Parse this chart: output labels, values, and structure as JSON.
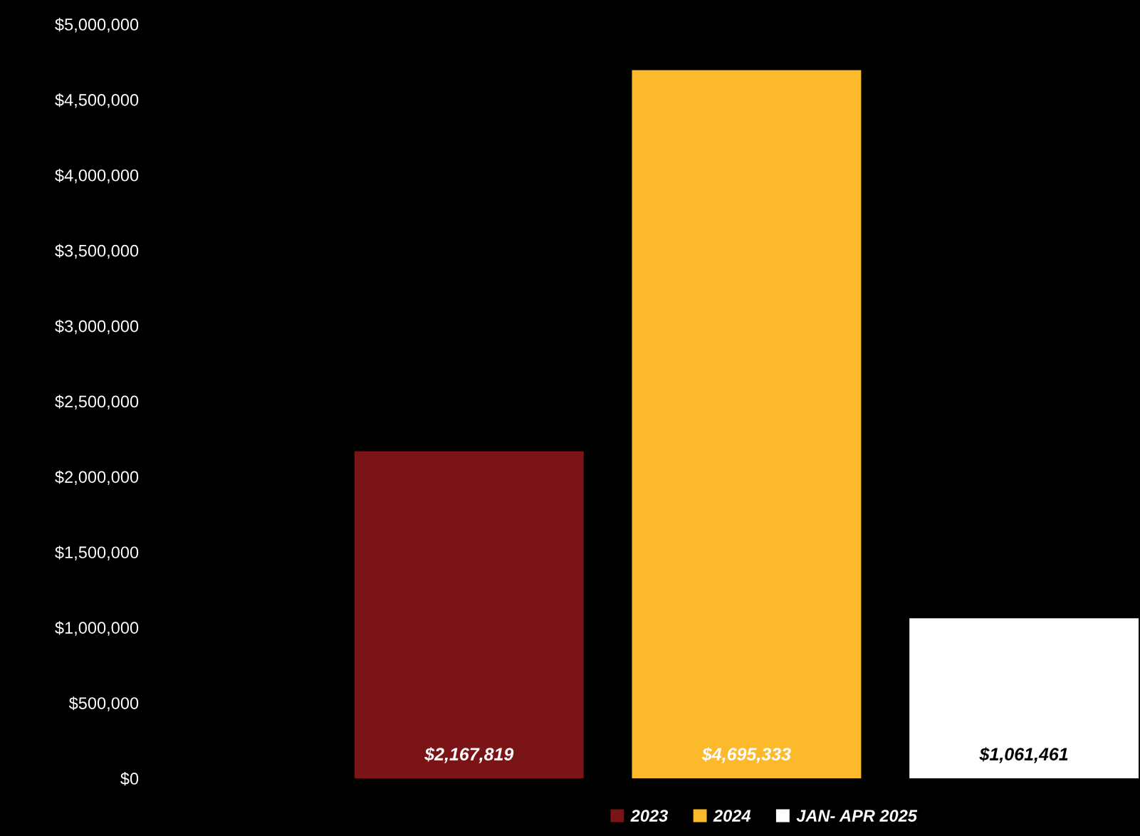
{
  "chart_data": {
    "type": "bar",
    "categories": [
      null
    ],
    "series": [
      {
        "name": "2023",
        "color": "#7b1416",
        "values": [
          2167819
        ]
      },
      {
        "name": "2024",
        "color": "#fdb92c",
        "values": [
          4695333
        ]
      },
      {
        "name": "JAN- APR 2025",
        "color": "#ffffff",
        "values": [
          1061461
        ]
      }
    ],
    "value_labels": [
      "$2,167,819",
      "$4,695,333",
      "$1,061,461"
    ],
    "ylim": [
      0,
      5000000
    ],
    "yticks": [
      {
        "value": 0,
        "label": "$0"
      },
      {
        "value": 500000,
        "label": "$500,000"
      },
      {
        "value": 1000000,
        "label": "$1,000,000"
      },
      {
        "value": 1500000,
        "label": "$1,500,000"
      },
      {
        "value": 2000000,
        "label": "$2,000,000"
      },
      {
        "value": 2500000,
        "label": "$2,500,000"
      },
      {
        "value": 3000000,
        "label": "$3,000,000"
      },
      {
        "value": 3500000,
        "label": "$3,500,000"
      },
      {
        "value": 4000000,
        "label": "$4,000,000"
      },
      {
        "value": 4500000,
        "label": "$4,500,000"
      },
      {
        "value": 5000000,
        "label": "$5,000,000"
      }
    ],
    "grid": false,
    "legend": "bottom"
  }
}
